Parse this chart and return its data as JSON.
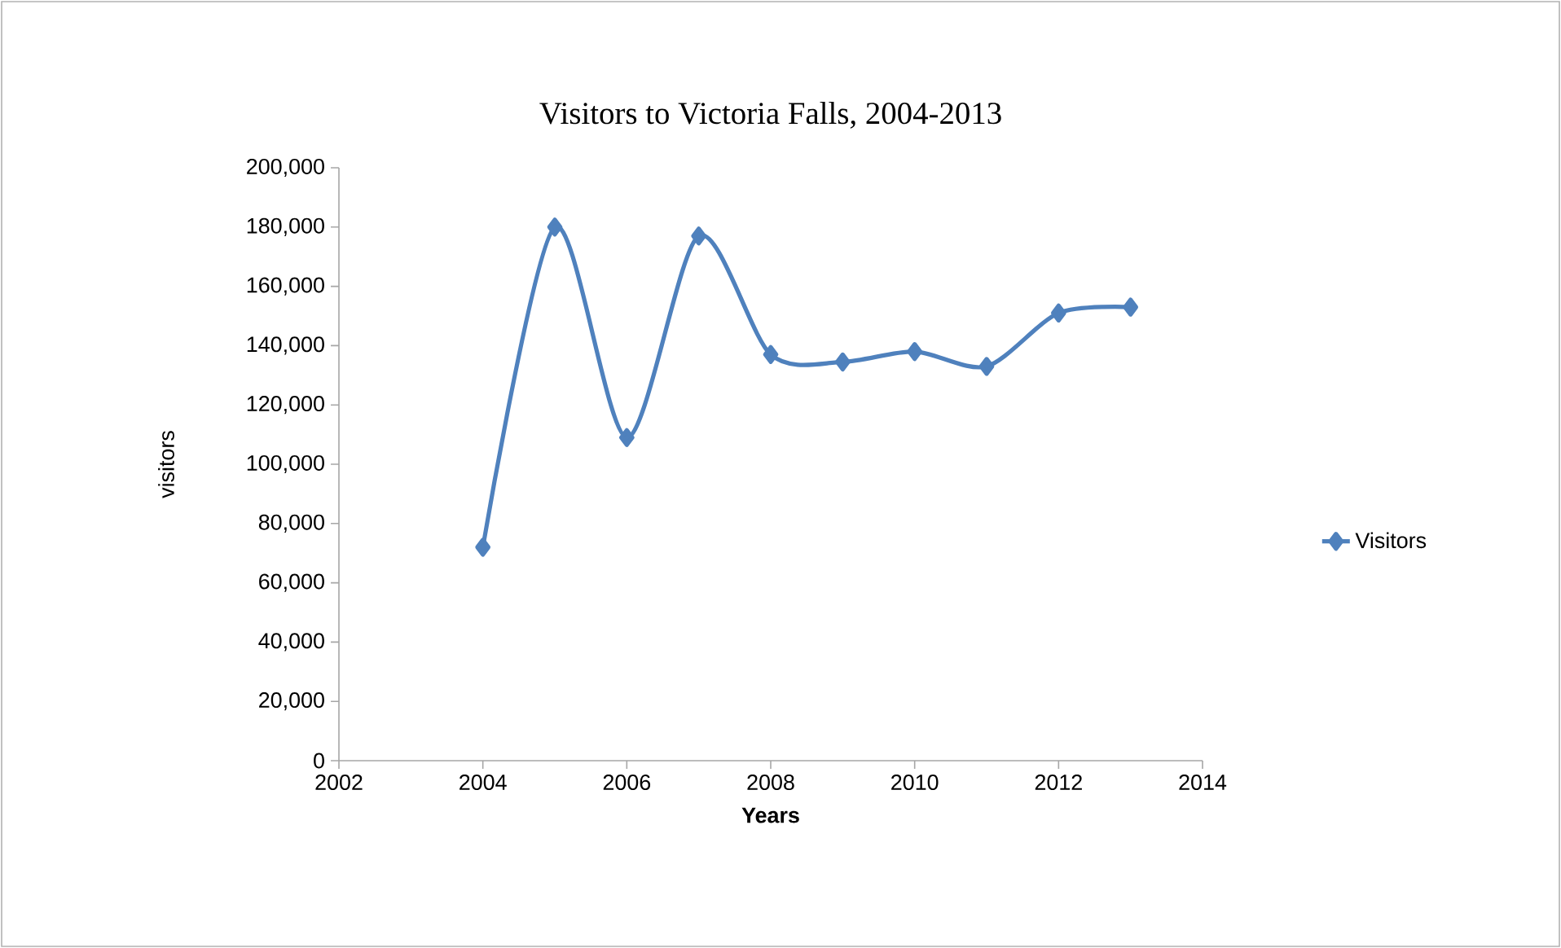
{
  "chart_data": {
    "type": "line",
    "title": "Visitors to Victoria Falls, 2004-2013",
    "xlabel": "Years",
    "ylabel": "visitors",
    "x": [
      2004,
      2005,
      2006,
      2007,
      2008,
      2009,
      2010,
      2011,
      2012,
      2013
    ],
    "series": [
      {
        "name": "Visitors",
        "color": "#4f81bd",
        "values": [
          72000,
          180000,
          109000,
          177000,
          137000,
          134500,
          138000,
          133000,
          151000,
          153000
        ]
      }
    ],
    "xlim": [
      2002,
      2014
    ],
    "xticks": [
      2002,
      2004,
      2006,
      2008,
      2010,
      2012,
      2014
    ],
    "ylim": [
      0,
      200000
    ],
    "yticks": [
      {
        "value": 0,
        "label": "0"
      },
      {
        "value": 20000,
        "label": "20,000"
      },
      {
        "value": 40000,
        "label": "40,000"
      },
      {
        "value": 60000,
        "label": "60,000"
      },
      {
        "value": 80000,
        "label": "80,000"
      },
      {
        "value": 100000,
        "label": "100,000"
      },
      {
        "value": 120000,
        "label": "120,000"
      },
      {
        "value": 140000,
        "label": "140,000"
      },
      {
        "value": 160000,
        "label": "160,000"
      },
      {
        "value": 180000,
        "label": "180,000"
      },
      {
        "value": 200000,
        "label": "200,000"
      }
    ],
    "grid": false,
    "legend": "right",
    "marker": "diamond",
    "line_style": "solid"
  }
}
